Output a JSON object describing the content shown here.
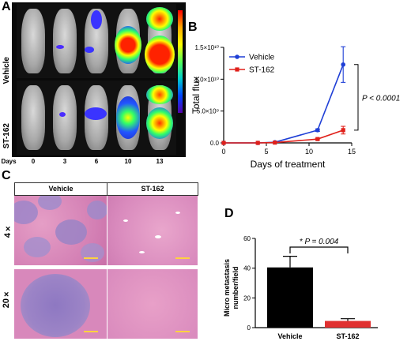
{
  "panels": {
    "a": "A",
    "b": "B",
    "c": "C",
    "d": "D"
  },
  "panel_a": {
    "row_labels": [
      "Vehicle",
      "ST-162"
    ],
    "days_label": "Days",
    "days": [
      "0",
      "3",
      "6",
      "10",
      "13"
    ]
  },
  "panel_c": {
    "headers": [
      "Vehicle",
      "ST-162"
    ],
    "magnifications": [
      "4×",
      "20×"
    ]
  },
  "chart_data": [
    {
      "type": "line",
      "xlabel": "Days of treatment",
      "ylabel": "Total flux",
      "xlim": [
        0,
        15
      ],
      "ylim": [
        0,
        15000000000
      ],
      "x_ticks": [
        "0",
        "5",
        "10",
        "15"
      ],
      "y_ticks": [
        "0.0",
        "5.0×10⁹",
        "1.0×10¹⁰",
        "1.5×10¹⁰"
      ],
      "legend_position": "top-left",
      "series": [
        {
          "name": "Vehicle",
          "color": "#1f3fd6",
          "x": [
            0,
            4,
            6,
            11,
            14
          ],
          "y": [
            0,
            0,
            100000000,
            2000000000,
            12300000000
          ],
          "err": [
            0,
            0,
            0,
            200000000,
            2800000000
          ]
        },
        {
          "name": "ST-162",
          "color": "#e0201a",
          "x": [
            0,
            4,
            6,
            11,
            14
          ],
          "y": [
            0,
            0,
            50000000,
            600000000,
            2000000000
          ],
          "err": [
            0,
            0,
            0,
            100000000,
            600000000
          ]
        }
      ],
      "annotation": "P < 0.0001"
    },
    {
      "type": "bar",
      "categories": [
        "Vehicle",
        "ST-162"
      ],
      "values": [
        40.5,
        4.5
      ],
      "errors": [
        7.5,
        1.5
      ],
      "colors": [
        "#000000",
        "#e03030"
      ],
      "ylabel": "Micro metastasis number/field",
      "ylim": [
        0,
        60
      ],
      "y_ticks": [
        "0",
        "20",
        "40",
        "60"
      ],
      "annotation": "* P = 0.004"
    }
  ]
}
